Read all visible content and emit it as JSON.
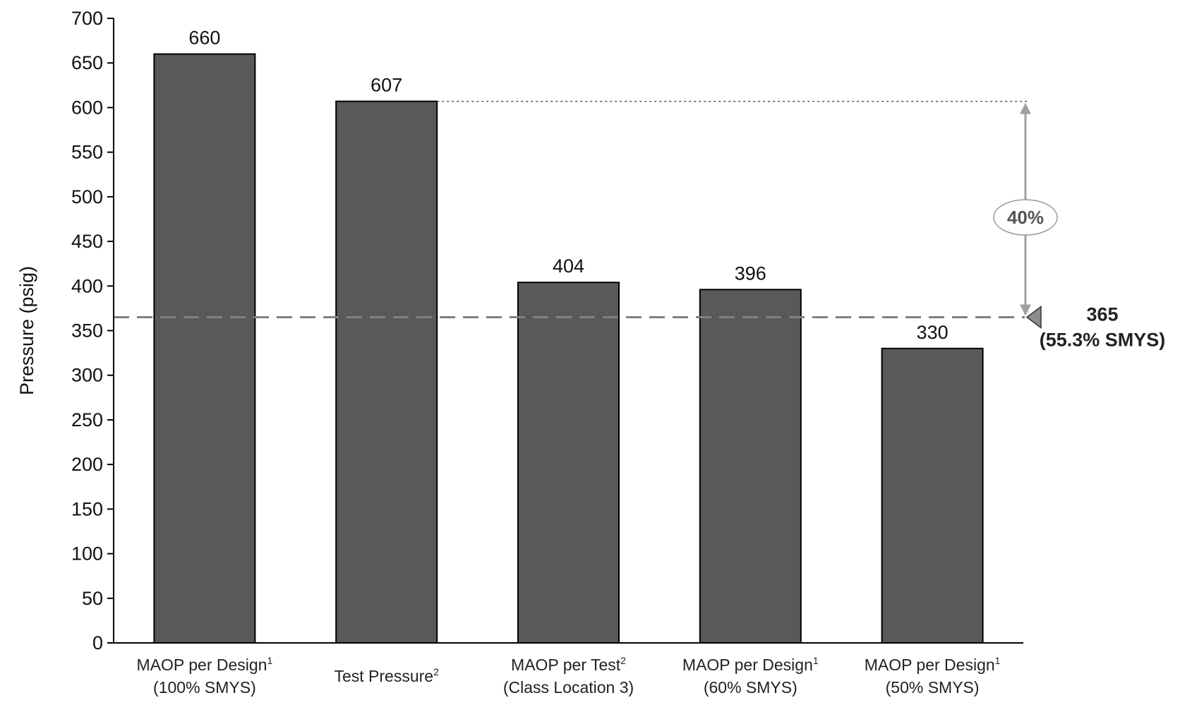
{
  "chart_data": {
    "type": "bar",
    "title": "",
    "xlabel": "",
    "ylabel": "Pressure (psig)",
    "ylim": [
      0,
      700
    ],
    "yticks": [
      0,
      50,
      100,
      150,
      200,
      250,
      300,
      350,
      400,
      450,
      500,
      550,
      600,
      650,
      700
    ],
    "grid": false,
    "bar_color": "#595959",
    "categories": [
      {
        "line1": "MAOP per Design",
        "sup": "1",
        "line2": "(100% SMYS)"
      },
      {
        "line1": "Test Pressure",
        "sup": "2",
        "line2": ""
      },
      {
        "line1": "MAOP per Test",
        "sup": "2",
        "line2": "(Class Location 3)"
      },
      {
        "line1": "MAOP per Design",
        "sup": "1",
        "line2": "(60% SMYS)"
      },
      {
        "line1": "MAOP per Design",
        "sup": "1",
        "line2": "(50% SMYS)"
      }
    ],
    "values": [
      660,
      607,
      404,
      396,
      330
    ],
    "data_labels": [
      "660",
      "607",
      "404",
      "396",
      "330"
    ],
    "reference_line": {
      "value": 365,
      "style": "dashed",
      "color": "#808080",
      "label_line1": "365",
      "label_line2": "(55.3% SMYS)"
    },
    "annotation": {
      "from_value": 607,
      "to_value": 365,
      "label": "40%",
      "color": "#a0a0a0"
    }
  }
}
